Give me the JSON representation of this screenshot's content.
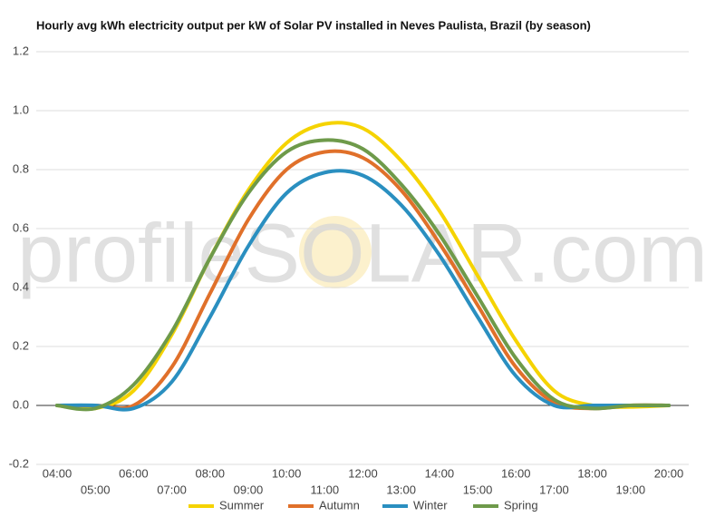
{
  "chart_data": {
    "type": "line",
    "title": "Hourly avg kWh electricity output per kW of Solar PV installed in Neves Paulista, Brazil (by season)",
    "watermark": "profileSOLAR.com",
    "categories": [
      "04:00",
      "05:00",
      "06:00",
      "07:00",
      "08:00",
      "09:00",
      "10:00",
      "11:00",
      "12:00",
      "13:00",
      "14:00",
      "15:00",
      "16:00",
      "17:00",
      "18:00",
      "19:00",
      "20:00"
    ],
    "series": [
      {
        "name": "Summer",
        "color": "#f5d300",
        "values": [
          0,
          -0.01,
          0.05,
          0.24,
          0.5,
          0.73,
          0.89,
          0.955,
          0.94,
          0.83,
          0.66,
          0.44,
          0.22,
          0.05,
          0,
          -0.005,
          0
        ]
      },
      {
        "name": "Autumn",
        "color": "#e0702a",
        "values": [
          0,
          0,
          0,
          0.13,
          0.38,
          0.63,
          0.8,
          0.86,
          0.84,
          0.73,
          0.55,
          0.34,
          0.13,
          0.01,
          -0.01,
          0,
          0
        ]
      },
      {
        "name": "Winter",
        "color": "#2a8fc0",
        "values": [
          0,
          0,
          -0.01,
          0.08,
          0.3,
          0.54,
          0.72,
          0.79,
          0.78,
          0.68,
          0.51,
          0.3,
          0.1,
          0,
          0,
          0,
          0
        ]
      },
      {
        "name": "Spring",
        "color": "#6e9a4a",
        "values": [
          0,
          -0.01,
          0.07,
          0.25,
          0.5,
          0.72,
          0.86,
          0.9,
          0.87,
          0.75,
          0.58,
          0.37,
          0.16,
          0.02,
          -0.01,
          0,
          0
        ]
      }
    ],
    "ylim": [
      -0.2,
      1.2
    ],
    "yticks": [
      -0.2,
      {
        "value": 0,
        "label": "0.0"
      },
      0.2,
      0.4,
      0.6,
      0.8,
      {
        "value": 1,
        "label": "1.0"
      },
      1.2
    ],
    "grid": true,
    "legend": "bottom"
  }
}
